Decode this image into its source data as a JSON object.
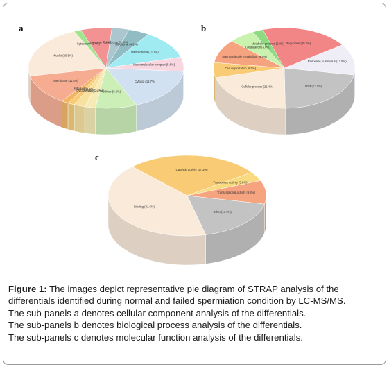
{
  "panels": [
    {
      "id": "a",
      "label": "a",
      "chart_data": {
        "type": "pie",
        "title": "",
        "slices": [
          {
            "name": "Cytosol",
            "value": 16.7,
            "text": "Cytosol (16.7%)",
            "color": "#c9dcee"
          },
          {
            "name": "Other",
            "value": 8.3,
            "text": "Other (8.3%)",
            "color": "#c2ecaa"
          },
          {
            "name": "Golgi",
            "value": 2.2,
            "text": "Golgi (2.2%)",
            "color": "#f4e8a8"
          },
          {
            "name": "Cytoskeleton",
            "value": 2.2,
            "text": "Cytoskeleton (2.2%)",
            "color": "#f6dc8c"
          },
          {
            "name": "Nucleus",
            "value": 1.4,
            "text": "Nucleus (1.4%)",
            "color": "#f7c25c"
          },
          {
            "name": "ER",
            "value": 1.4,
            "text": "ER (1.4%)",
            "color": "#f0a848"
          },
          {
            "name": "Membrane",
            "value": 11.8,
            "text": "Membrane (11.8%)",
            "color": "#f59e7e"
          },
          {
            "name": "Nuclei",
            "value": 20.8,
            "text": "Nuclei (20.8%)",
            "color": "#f8e6d2"
          },
          {
            "name": "Cytoplasm",
            "value": 1.4,
            "text": "Cytoplasm (1.4%)",
            "color": "#8fe07a"
          },
          {
            "name": "Lysosome",
            "value": 6.3,
            "text": "Lysosome (6.3%)",
            "color": "#f07f7f"
          },
          {
            "name": "Peroxisome",
            "value": 3.5,
            "text": "Peroxisome (3.5%)",
            "color": "#9cbcc6"
          },
          {
            "name": "Ribosome",
            "value": 4.2,
            "text": "Ribosome (4.2%)",
            "color": "#7fb0b8"
          },
          {
            "name": "Mitochondria",
            "value": 11.1,
            "text": "Mitochondria (11.1%)",
            "color": "#8fe6f0"
          },
          {
            "name": "Macromolecular complex",
            "value": 5.6,
            "text": "Macromolecular complex (5.6%)",
            "color": "#f8d0dc"
          }
        ]
      }
    },
    {
      "id": "b",
      "label": "b",
      "chart_data": {
        "type": "pie",
        "title": "",
        "slices": [
          {
            "name": "Other",
            "value": 22.0,
            "text": "Other (22.0%)",
            "color": "#b9b9b9"
          },
          {
            "name": "Cellular process",
            "value": 21.4,
            "text": "Cellular process (21.4%)",
            "color": "#f8e6d2"
          },
          {
            "name": "Cell organization",
            "value": 6.0,
            "text": "Cell organization (6.0%)",
            "color": "#f7c25c"
          },
          {
            "name": "Macromolecule metabolism",
            "value": 9.5,
            "text": "Macromolecule metabolism (9.5%)",
            "color": "#f5936a"
          },
          {
            "name": "Localization",
            "value": 6.0,
            "text": "Localization (6.0%)",
            "color": "#bff0a0"
          },
          {
            "name": "Metabolic process",
            "value": 2.4,
            "text": "Metabolic process (2.4%)",
            "color": "#7ad36a"
          },
          {
            "name": "Regulation",
            "value": 20.2,
            "text": "Regulation (20.2%)",
            "color": "#f07070"
          },
          {
            "name": "Response to stimulus",
            "value": 12.5,
            "text": "Response to stimulus (12.5%)",
            "color": "#ecebf6"
          }
        ]
      }
    },
    {
      "id": "c",
      "label": "c",
      "chart_data": {
        "type": "pie",
        "title": "",
        "slices": [
          {
            "name": "Other",
            "value": 17.9,
            "text": "Other (17.9%)",
            "color": "#b9b9b9"
          },
          {
            "name": "Binding",
            "value": 41.6,
            "text": "Binding (41.6%)",
            "color": "#f8e6d2"
          },
          {
            "name": "Catalytic activity",
            "value": 27.3,
            "text": "Catalytic activity (27.3%)",
            "color": "#f7c25c"
          },
          {
            "name": "Transporter activity",
            "value": 3.8,
            "text": "Transporter activity (3.8%)",
            "color": "#f7d46a"
          },
          {
            "name": "Transcriptional activity",
            "value": 9.4,
            "text": "Transcriptional activity (9.4%)",
            "color": "#f5936a"
          }
        ]
      }
    }
  ],
  "caption": {
    "lead": "Figure 1:",
    "text": " The images depict representative pie diagram of STRAP analysis of the differentials identified during normal and failed spermiation condition by LC-MS/MS.",
    "lines": [
      "The sub-panels a denotes cellular component analysis of the differentials.",
      "The sub-panels b denotes biological process analysis of the differentials.",
      "The sub-panels c denotes molecular function analysis of the differentials."
    ]
  }
}
